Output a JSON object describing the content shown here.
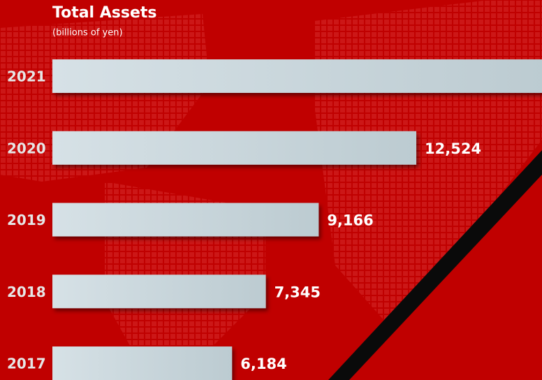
{
  "chart_data": {
    "type": "bar",
    "orientation": "horizontal",
    "title": "Total Assets",
    "subtitle": "(billions of yen)",
    "categories": [
      "2021",
      "2020",
      "2019",
      "2018",
      "2017"
    ],
    "values": [
      17000,
      12524,
      9166,
      7345,
      6184
    ],
    "value_labels": [
      null,
      "12,524",
      "9,166",
      "7,345",
      "6,184"
    ],
    "color": "#c9d6dc",
    "xlim": [
      0,
      16850
    ]
  }
}
